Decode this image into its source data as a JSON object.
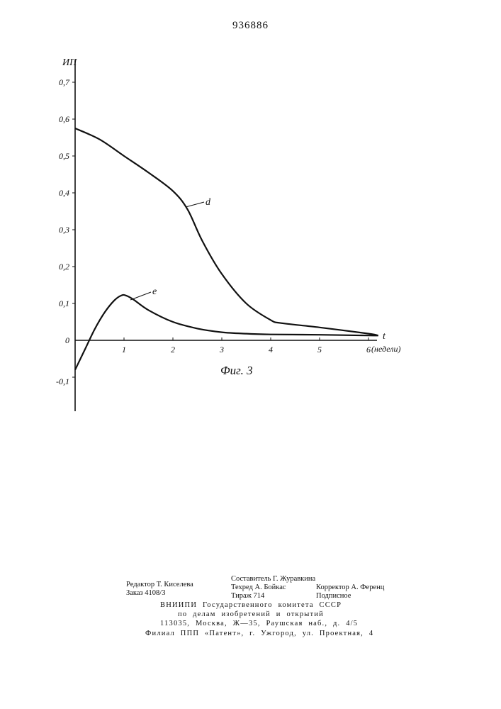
{
  "document": {
    "patent_number": "936886"
  },
  "chart_data": {
    "type": "line",
    "ylabel": "ИП",
    "xlabel": "t",
    "x_unit": "(недели)",
    "caption": "Фиг. 3",
    "xlim": [
      0,
      6.3
    ],
    "ylim": [
      -0.2,
      0.72
    ],
    "x_ticks": [
      {
        "value": 1,
        "label": "1"
      },
      {
        "value": 2,
        "label": "2"
      },
      {
        "value": 3,
        "label": "3"
      },
      {
        "value": 4,
        "label": "4"
      },
      {
        "value": 5,
        "label": "5"
      },
      {
        "value": 6,
        "label": "6"
      }
    ],
    "y_ticks": [
      {
        "value": 0.7,
        "label": "0,7"
      },
      {
        "value": 0.6,
        "label": "0,6"
      },
      {
        "value": 0.5,
        "label": "0,5"
      },
      {
        "value": 0.4,
        "label": "0,4"
      },
      {
        "value": 0.3,
        "label": "0,3"
      },
      {
        "value": 0.2,
        "label": "0,2"
      },
      {
        "value": 0.1,
        "label": "0,1"
      },
      {
        "value": 0,
        "label": "0"
      },
      {
        "value": -0.1,
        "label": "-0,1"
      }
    ],
    "series": [
      {
        "name": "d",
        "x": [
          0,
          0.5,
          1.0,
          1.5,
          2.0,
          2.3,
          2.6,
          3.0,
          3.5,
          4.0,
          4.2,
          5.0,
          6.0,
          6.2
        ],
        "y": [
          0.575,
          0.545,
          0.5,
          0.455,
          0.405,
          0.355,
          0.27,
          0.18,
          0.1,
          0.055,
          0.047,
          0.035,
          0.018,
          0.013
        ]
      },
      {
        "name": "e",
        "x": [
          0,
          0.2,
          0.4,
          0.6,
          0.8,
          0.95,
          1.05,
          1.2,
          1.5,
          2.0,
          2.5,
          3.0,
          3.5,
          4.0,
          5.0,
          6.0,
          6.2
        ],
        "y": [
          -0.08,
          -0.025,
          0.03,
          0.075,
          0.108,
          0.122,
          0.121,
          0.11,
          0.082,
          0.05,
          0.032,
          0.022,
          0.018,
          0.016,
          0.015,
          0.013,
          0.013
        ]
      }
    ]
  },
  "imprint": {
    "compiler": "Составитель Г. Журавкина",
    "editor": "Редактор Т. Киселева",
    "techeditor": "Техред А. Бойкас",
    "corrector": "Корректор А. Ференц",
    "order": "Заказ 4108/3",
    "circulation": "Тираж 714",
    "subscription": "Подписное",
    "org_line1": "ВНИИПИ Государственного комитета СССР",
    "org_line2": "по делам изобретений и открытий",
    "org_line3": "113035, Москва, Ж—35, Раушская наб., д. 4/5",
    "branch": "Филиал ППП «Патент», г. Ужгород, ул. Проектная, 4"
  }
}
